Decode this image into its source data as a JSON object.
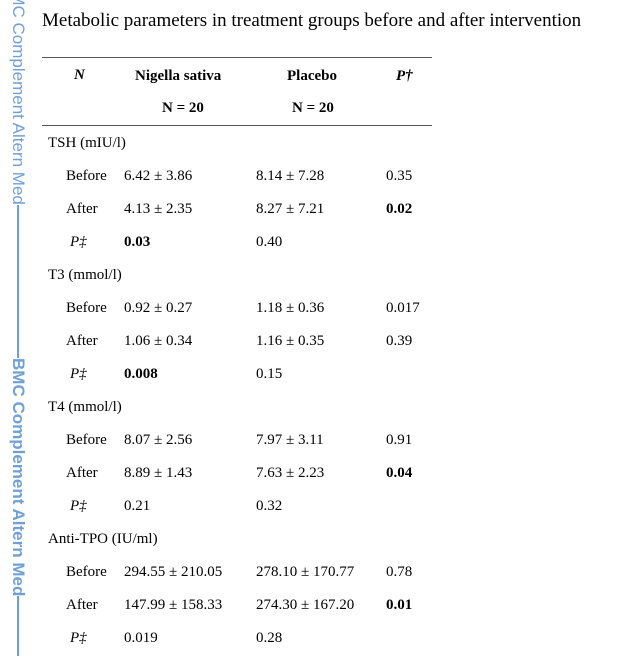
{
  "side_banner": {
    "label_1": "BMC Complement Altern Med",
    "label_2": "BMC Complement Altern Med"
  },
  "title": "Metabolic parameters in treatment groups before and after intervention",
  "header": {
    "col_n": "N",
    "col_nigella": "Nigella sativa",
    "col_placebo": "Placebo",
    "col_p": "P†",
    "n_nigella": "N = 20",
    "n_placebo": "N = 20"
  },
  "sections": [
    {
      "title": "TSH (mIU/l)",
      "before": {
        "label": "Before",
        "nigella": "6.42 ± 3.86",
        "placebo": "8.14 ± 7.28",
        "p": "0.35"
      },
      "after": {
        "label": "After",
        "nigella": "4.13 ± 2.35",
        "placebo": "8.27 ± 7.21",
        "p": "0.02"
      },
      "p_row": {
        "label": "P‡",
        "nigella": "0.03",
        "placebo": "0.40"
      }
    },
    {
      "title": "T3 (mmol/l)",
      "before": {
        "label": "Before",
        "nigella": "0.92 ± 0.27",
        "placebo": "1.18 ± 0.36",
        "p": "0.017"
      },
      "after": {
        "label": "After",
        "nigella": "1.06 ± 0.34",
        "placebo": "1.16 ± 0.35",
        "p": "0.39"
      },
      "p_row": {
        "label": "P‡",
        "nigella": "0.008",
        "placebo": "0.15"
      }
    },
    {
      "title": "T4 (mmol/l)",
      "before": {
        "label": "Before",
        "nigella": "8.07 ± 2.56",
        "placebo": "7.97 ± 3.11",
        "p": "0.91"
      },
      "after": {
        "label": "After",
        "nigella": "8.89 ± 1.43",
        "placebo": "7.63 ± 2.23",
        "p": "0.04"
      },
      "p_row": {
        "label": "P‡",
        "nigella": "0.21",
        "placebo": "0.32"
      }
    },
    {
      "title": "Anti-TPO (IU/ml)",
      "before": {
        "label": "Before",
        "nigella": "294.55 ± 210.05",
        "placebo": "278.10 ± 170.77",
        "p": "0.78"
      },
      "after": {
        "label": "After",
        "nigella": "147.99 ± 158.33",
        "placebo": "274.30 ± 167.20",
        "p": "0.01"
      },
      "p_row": {
        "label": "P‡",
        "nigella": "0.019",
        "placebo": "0.28"
      }
    }
  ]
}
